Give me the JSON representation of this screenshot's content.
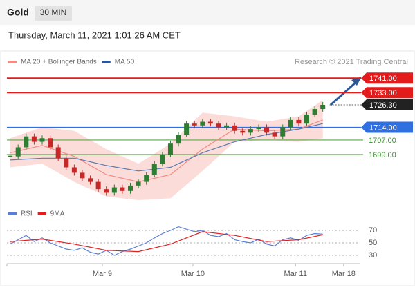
{
  "header": {
    "title": "Gold",
    "interval": "30 MIN",
    "timestamp": "Thursday, March 11, 2021 1:01:26 AM CET"
  },
  "chart_data": [
    {
      "type": "candlestick",
      "credit": "Research © 2021 Trading Central",
      "x": [
        0,
        1,
        2,
        3,
        4,
        5,
        6,
        7,
        8,
        9,
        10,
        11,
        12,
        13,
        14,
        15,
        16,
        17,
        18,
        19,
        20,
        21,
        22,
        23,
        24,
        25,
        26,
        27,
        28,
        29,
        30,
        31,
        32,
        33,
        34,
        35,
        36,
        37,
        38,
        39
      ],
      "close": [
        1698,
        1703,
        1709,
        1706,
        1708,
        1703,
        1697,
        1692,
        1689,
        1686,
        1684,
        1680,
        1678,
        1681,
        1679,
        1682,
        1684,
        1688,
        1694,
        1699,
        1705,
        1710,
        1716,
        1715,
        1717,
        1716,
        1714,
        1715,
        1712,
        1711,
        1713,
        1714,
        1711,
        1709,
        1714,
        1718,
        1716,
        1721,
        1724,
        1726.3
      ],
      "up_color": "#2e7d32",
      "down_color": "#c62828",
      "xlim": [
        -0.4,
        43.6
      ],
      "ylim": [
        1674,
        1746
      ],
      "series": [
        {
          "name": "MA 20 + Bollinger Bands",
          "color": "#f28b82",
          "band_color": "#fbd3d0",
          "x": [
            0,
            4,
            8,
            12,
            16,
            20,
            24,
            28,
            32,
            36,
            39
          ],
          "values": [
            1700,
            1704,
            1698,
            1688,
            1684,
            1688,
            1702,
            1713,
            1712,
            1713,
            1718
          ],
          "upper": [
            1708,
            1714,
            1712,
            1702,
            1694,
            1705,
            1722,
            1720,
            1717,
            1720,
            1729
          ],
          "lower": [
            1692,
            1694,
            1684,
            1676,
            1674,
            1675,
            1690,
            1706,
            1707,
            1706,
            1708
          ]
        },
        {
          "name": "MA 50",
          "color": "#5a7ab0",
          "legend_color": "#2b5797",
          "x": [
            0,
            4,
            8,
            12,
            16,
            20,
            24,
            28,
            32,
            36,
            39
          ],
          "values": [
            1696,
            1697,
            1697,
            1693,
            1690,
            1692,
            1700,
            1706,
            1710,
            1713,
            1716
          ]
        }
      ],
      "levels": {
        "values": [
          1741,
          1733,
          1714,
          1707,
          1699
        ],
        "value_labels": [
          "1741.00",
          "1733.00",
          "1714.00",
          "1707.00",
          "1699.00"
        ],
        "colors": [
          "#e31b1b",
          "#e31b1b",
          "#2f6fe0",
          "#5aa84a",
          "#5aa84a"
        ],
        "tagged": [
          true,
          true,
          true,
          false,
          false
        ]
      },
      "last": {
        "value": 1726.3,
        "label": "1726.30",
        "color": "#222222"
      }
    },
    {
      "type": "line",
      "xlim": [
        -0.4,
        43.6
      ],
      "ylim": [
        20,
        90
      ],
      "yticks": [
        30,
        50,
        70
      ],
      "xticks": [
        {
          "value": 11.5,
          "label": "Mar 9"
        },
        {
          "value": 22.8,
          "label": "Mar 10"
        },
        {
          "value": 35.6,
          "label": "Mar 11"
        },
        {
          "value": 41.6,
          "label": "Mar 18"
        }
      ],
      "series": [
        {
          "name": "RSI",
          "color": "#5b7fd6",
          "x": [
            0,
            1,
            2,
            3,
            4,
            5,
            6,
            7,
            8,
            9,
            10,
            11,
            12,
            13,
            14,
            15,
            16,
            17,
            18,
            19,
            20,
            21,
            22,
            23,
            24,
            25,
            26,
            27,
            28,
            29,
            30,
            31,
            32,
            33,
            34,
            35,
            36,
            37,
            38,
            39
          ],
          "values": [
            48,
            55,
            62,
            52,
            58,
            50,
            45,
            40,
            38,
            42,
            35,
            32,
            38,
            30,
            36,
            40,
            45,
            50,
            58,
            65,
            70,
            76,
            72,
            68,
            70,
            62,
            60,
            65,
            55,
            52,
            50,
            56,
            48,
            45,
            55,
            58,
            54,
            62,
            65,
            64
          ]
        },
        {
          "name": "9MA",
          "color": "#e02020",
          "x": [
            0,
            4,
            8,
            12,
            16,
            20,
            24,
            28,
            32,
            36,
            39
          ],
          "values": [
            52,
            56,
            48,
            38,
            36,
            48,
            68,
            62,
            52,
            55,
            63
          ]
        }
      ]
    }
  ]
}
